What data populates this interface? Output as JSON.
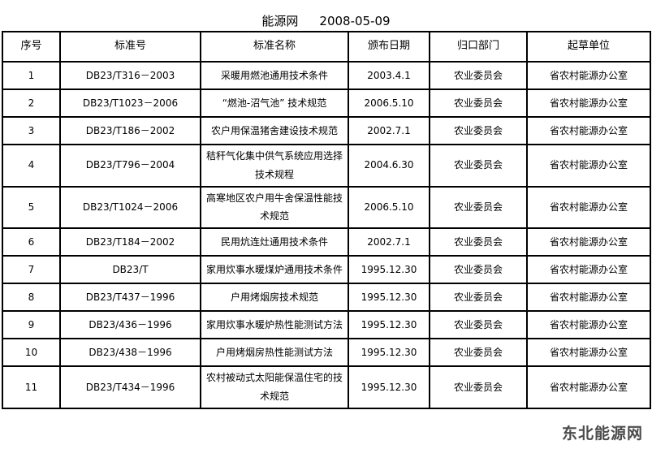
{
  "header": {
    "source": "能源网",
    "date": "2008-05-09"
  },
  "table": {
    "column_headers": [
      "序号",
      "标准号",
      "标准名称",
      "颁布日期",
      "归口部门",
      "起草单位"
    ],
    "rows": [
      {
        "no": "1",
        "std": "DB23/T316－2003",
        "name": "采暖用燃池通用技术条件",
        "date": "2003.4.1",
        "dept": "农业委员会",
        "drafter": "省农村能源办公室"
      },
      {
        "no": "2",
        "std": "DB23/T1023－2006",
        "name": "“燃池-沼气池” 技术规范",
        "date": "2006.5.10",
        "dept": "农业委员会",
        "drafter": "省农村能源办公室"
      },
      {
        "no": "3",
        "std": "DB23/T186－2002",
        "name": "农户用保温猪舍建设技术规范",
        "date": "2002.7.1",
        "dept": "农业委员会",
        "drafter": "省农村能源办公室"
      },
      {
        "no": "4",
        "std": "DB23/T796－2004",
        "name": "秸秆气化集中供气系统应用选择技术规程",
        "date": "2004.6.30",
        "dept": "农业委员会",
        "drafter": "省农村能源办公室"
      },
      {
        "no": "5",
        "std": "DB23/T1024－2006",
        "name": "高寒地区农户用牛舍保温性能技术规范",
        "date": "2006.5.10",
        "dept": "农业委员会",
        "drafter": "省农村能源办公室"
      },
      {
        "no": "6",
        "std": "DB23/T184－2002",
        "name": "民用炕连灶通用技术条件",
        "date": "2002.7.1",
        "dept": "农业委员会",
        "drafter": "省农村能源办公室"
      },
      {
        "no": "7",
        "std": "DB23/T",
        "name": "家用炊事水暖煤炉通用技术条件",
        "date": "1995.12.30",
        "dept": "农业委员会",
        "drafter": "省农村能源办公室"
      },
      {
        "no": "8",
        "std": "DB23/T437－1996",
        "name": "户用烤烟房技术规范",
        "date": "1995.12.30",
        "dept": "农业委员会",
        "drafter": "省农村能源办公室"
      },
      {
        "no": "9",
        "std": "DB23/436－1996",
        "name": "家用炊事水暖炉热性能测试方法",
        "date": "1995.12.30",
        "dept": "农业委员会",
        "drafter": "省农村能源办公室"
      },
      {
        "no": "10",
        "std": "DB23/438－1996",
        "name": "户用烤烟房热性能测试方法",
        "date": "1995.12.30",
        "dept": "农业委员会",
        "drafter": "省农村能源办公室"
      },
      {
        "no": "11",
        "std": "DB23/T434－1996",
        "name": "农村被动式太阳能保温住宅的技术规范",
        "date": "1995.12.30",
        "dept": "农业委员会",
        "drafter": "省农村能源办公室"
      }
    ]
  },
  "watermark": {
    "text": "东北能源网",
    "color": "#4c4c4c"
  },
  "colors": {
    "background": "#ffffff",
    "border": "#000000",
    "text": "#000000"
  }
}
